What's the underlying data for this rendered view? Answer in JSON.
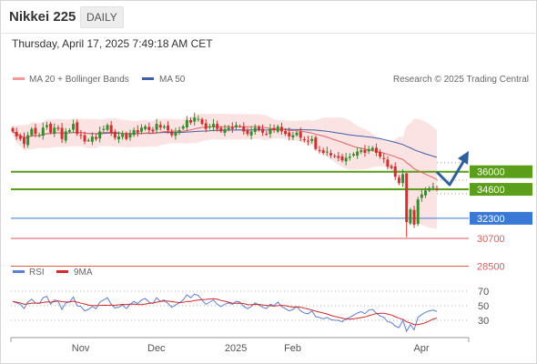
{
  "header": {
    "title": "Nikkei 225",
    "timeframe": "DAILY",
    "datetime": "Thursday, April 17, 2025 7:49:18 AM CET"
  },
  "legend": {
    "ma20_label": "MA 20 + Bollinger Bands",
    "ma50_label": "MA 50",
    "copyright": "Research © 2025 Trading Central",
    "rsi_label": "RSI",
    "rsi_ma_label": "9MA"
  },
  "colors": {
    "candle_up": "#3a8a2e",
    "candle_down": "#d0312d",
    "ma20": "#e06464",
    "ma50": "#3e5fa8",
    "bollinger_fill": "#fbdada",
    "resistance": "#5a9e1a",
    "pivot": "#3a78d6",
    "support": "#e05a5a",
    "rsi_line": "#5b7fd6",
    "rsi_ma": "#d02a2a",
    "forecast_arrow": "#2f5e9e"
  },
  "chart_data": {
    "type": "candlestick",
    "x_labels": [
      "Nov",
      "Dec",
      "2025",
      "Feb",
      "Apr"
    ],
    "price_levels": [
      {
        "label": "36000",
        "type": "resistance",
        "value": 36000
      },
      {
        "label": "34600",
        "type": "resistance",
        "value": 34600
      },
      {
        "label": "32300",
        "type": "pivot",
        "value": 32300
      },
      {
        "label": "30700",
        "type": "support",
        "value": 30700
      },
      {
        "label": "28500",
        "type": "support",
        "value": 28500
      }
    ],
    "rsi_ticks": [
      "70",
      "50",
      "30"
    ],
    "forecast": "Price expected to dip toward 34600 before rising to 36000",
    "closes": [
      39200,
      38800,
      38600,
      38200,
      38900,
      39400,
      39000,
      38900,
      39500,
      39700,
      39100,
      39500,
      39400,
      38600,
      39200,
      39300,
      39800,
      39000,
      38900,
      38400,
      38500,
      38800,
      38600,
      39200,
      39400,
      39700,
      39100,
      38700,
      38800,
      39000,
      38600,
      39000,
      39300,
      39100,
      39500,
      39600,
      39300,
      39200,
      39800,
      39500,
      39600,
      39300,
      38900,
      39100,
      39300,
      39600,
      40100,
      39900,
      40300,
      40200,
      39800,
      39400,
      39600,
      39800,
      39400,
      39200,
      39400,
      39500,
      39400,
      39700,
      39600,
      39200,
      39000,
      39200,
      39500,
      39300,
      39100,
      39000,
      39400,
      39300,
      39600,
      39200,
      39000,
      38800,
      38900,
      39100,
      38700,
      38500,
      38400,
      38600,
      37800,
      37700,
      37500,
      37600,
      37300,
      37200,
      37100,
      36900,
      37100,
      37200,
      37400,
      37600,
      37700,
      37500,
      37800,
      37900,
      37500,
      37200,
      37000,
      36400,
      36300,
      35600,
      35100,
      35800,
      32000,
      33000,
      31800,
      33800,
      34200,
      34500,
      34700,
      34800,
      34600
    ],
    "rsi": [
      56,
      54,
      52,
      46,
      55,
      59,
      54,
      53,
      61,
      63,
      52,
      58,
      56,
      45,
      54,
      55,
      62,
      50,
      49,
      43,
      45,
      49,
      46,
      55,
      58,
      61,
      52,
      47,
      48,
      51,
      46,
      52,
      56,
      53,
      58,
      60,
      55,
      53,
      61,
      56,
      58,
      53,
      48,
      51,
      54,
      58,
      65,
      61,
      66,
      64,
      58,
      52,
      55,
      58,
      52,
      49,
      52,
      54,
      52,
      56,
      55,
      49,
      46,
      49,
      54,
      51,
      48,
      46,
      52,
      50,
      55,
      49,
      46,
      43,
      45,
      49,
      43,
      40,
      39,
      43,
      35,
      34,
      32,
      34,
      31,
      30,
      30,
      28,
      32,
      34,
      37,
      40,
      42,
      39,
      44,
      45,
      40,
      36,
      34,
      28,
      27,
      22,
      20,
      30,
      15,
      24,
      17,
      34,
      38,
      41,
      43,
      44,
      42
    ],
    "y_range": [
      29400,
      42700
    ],
    "rsi_range": [
      10,
      80
    ]
  }
}
